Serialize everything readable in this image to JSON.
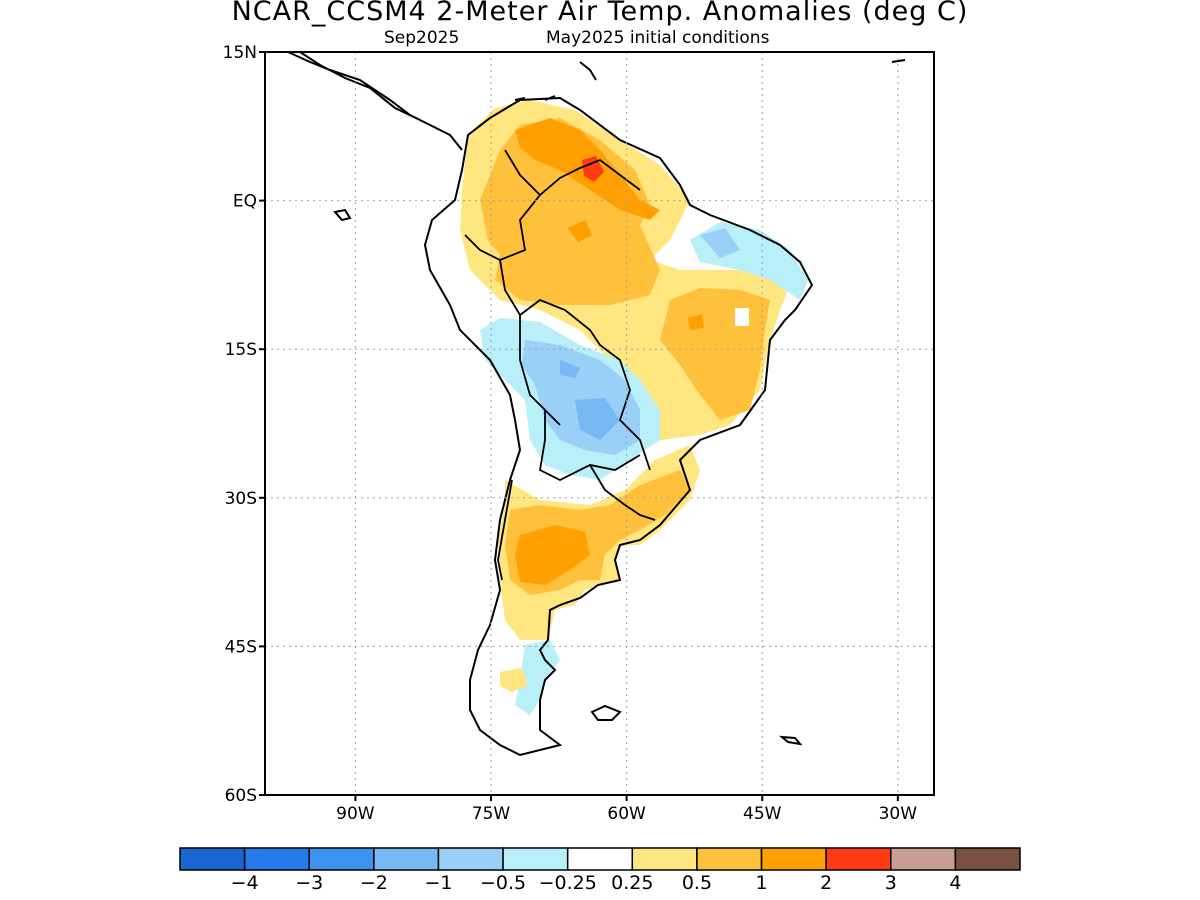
{
  "title": "NCAR_CCSM4 2-Meter Air Temp. Anomalies (deg C)",
  "subtitle": {
    "valid": "Sep2025",
    "init": "May2025 initial conditions"
  },
  "map": {
    "lon_range": [
      -100,
      -26
    ],
    "lat_range": [
      -60,
      15
    ],
    "lat_ticks": [
      {
        "lat": 15,
        "label": "15N"
      },
      {
        "lat": 0,
        "label": "EQ"
      },
      {
        "lat": -15,
        "label": "15S"
      },
      {
        "lat": -30,
        "label": "30S"
      },
      {
        "lat": -45,
        "label": "45S"
      },
      {
        "lat": -60,
        "label": "60S"
      }
    ],
    "lon_ticks": [
      {
        "lon": -90,
        "label": "90W"
      },
      {
        "lon": -75,
        "label": "75W"
      },
      {
        "lon": -60,
        "label": "60W"
      },
      {
        "lon": -45,
        "label": "45W"
      },
      {
        "lon": -30,
        "label": "30W"
      }
    ],
    "grid": "dotted"
  },
  "colorbar": {
    "colors": [
      "#1a66d0",
      "#2579e8",
      "#3d94f0",
      "#78b8f5",
      "#9ad0f8",
      "#b8eff8",
      "#ffffff",
      "#ffe680",
      "#ffc03c",
      "#ffa000",
      "#ff3b14",
      "#c89e94",
      "#7a5040"
    ],
    "labels": [
      "−4",
      "−3",
      "−2",
      "−1",
      "−0.5",
      "−0.25",
      "0.25",
      "0.5",
      "1",
      "2",
      "3",
      "4"
    ]
  }
}
